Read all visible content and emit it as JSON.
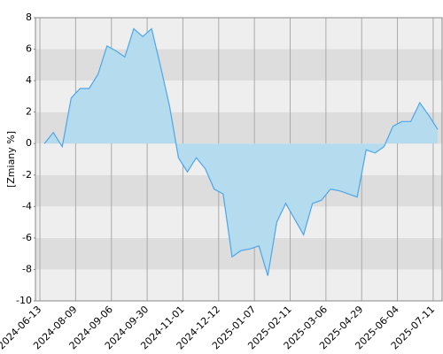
{
  "chart_data": {
    "type": "area",
    "y_label": "[Zmiany %]",
    "values": [
      0,
      0.7,
      -0.2,
      2.9,
      3.5,
      3.5,
      4.4,
      6.2,
      5.9,
      5.5,
      7.3,
      6.8,
      7.3,
      4.9,
      2.4,
      -0.9,
      -1.8,
      -0.9,
      -1.6,
      -2.9,
      -3.2,
      -7.2,
      -6.8,
      -6.7,
      -6.5,
      -8.4,
      -5.0,
      -3.8,
      -4.8,
      -5.8,
      -3.8,
      -3.6,
      -2.9,
      -3.0,
      -3.2,
      -3.4,
      -0.4,
      -0.6,
      -0.2,
      1.1,
      1.4,
      1.4,
      2.6,
      1.8,
      0.9
    ],
    "color": "#4da6e8",
    "fill": "#b5dcee",
    "band_colors": [
      "#eeeeee",
      "#dddddd"
    ],
    "xlim": [
      -1,
      44.5
    ],
    "xticks": [
      {
        "value": -0.5,
        "label": "2024-06-13"
      },
      {
        "value": 3.5,
        "label": "2024-08-09"
      },
      {
        "value": 7.5,
        "label": "2024-09-06"
      },
      {
        "value": 11.5,
        "label": "2024-09-30"
      },
      {
        "value": 15.5,
        "label": "2024-11-01"
      },
      {
        "value": 19.5,
        "label": "2024-12-12"
      },
      {
        "value": 23.5,
        "label": "2025-01-07"
      },
      {
        "value": 27.5,
        "label": "2025-02-11"
      },
      {
        "value": 31.5,
        "label": "2025-03-06"
      },
      {
        "value": 35.5,
        "label": "2025-04-29"
      },
      {
        "value": 39.5,
        "label": "2025-06-04"
      },
      {
        "value": 43.5,
        "label": "2025-07-11"
      }
    ],
    "ylim": [
      -10,
      8
    ],
    "yticks": [
      -10,
      -8,
      -6,
      -4,
      -2,
      0,
      2,
      4,
      6,
      8
    ],
    "grid": true
  }
}
